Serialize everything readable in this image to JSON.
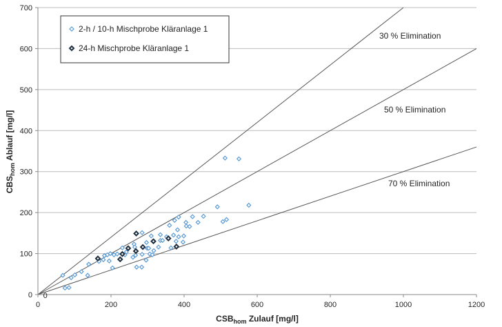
{
  "chart_data": {
    "type": "scatter",
    "title": "",
    "xlabel": {
      "main": "CSB",
      "sub": "hom",
      "rest": " Zulauf [mg/l]"
    },
    "ylabel": {
      "main": "CBS",
      "sub": "hom",
      "rest": " Ablauf [mg/l]"
    },
    "xlim": [
      0,
      1200
    ],
    "ylim": [
      0,
      700
    ],
    "xticks": [
      0,
      200,
      400,
      600,
      800,
      1000,
      1200
    ],
    "yticks": [
      0,
      100,
      200,
      300,
      400,
      500,
      600,
      700
    ],
    "grid": "horizontal",
    "legend_position": "top-left",
    "series": [
      {
        "name": "2-h / 10-h Mischprobe Kläranlage 1",
        "color": "#5b9bd5",
        "marker": "diamond-open",
        "points": [
          [
            68,
            47
          ],
          [
            74,
            16
          ],
          [
            85,
            17
          ],
          [
            91,
            41
          ],
          [
            101,
            48
          ],
          [
            119,
            56
          ],
          [
            136,
            47
          ],
          [
            139,
            74
          ],
          [
            167,
            81
          ],
          [
            179,
            85
          ],
          [
            182,
            95
          ],
          [
            190,
            97
          ],
          [
            195,
            82
          ],
          [
            198,
            100
          ],
          [
            204,
            65
          ],
          [
            208,
            97
          ],
          [
            217,
            99
          ],
          [
            231,
            114
          ],
          [
            238,
            97
          ],
          [
            242,
            104
          ],
          [
            260,
            91
          ],
          [
            263,
            123
          ],
          [
            265,
            116
          ],
          [
            270,
            67
          ],
          [
            267,
            96
          ],
          [
            284,
            67
          ],
          [
            285,
            151
          ],
          [
            285,
            98
          ],
          [
            296,
            84
          ],
          [
            297,
            127
          ],
          [
            299,
            113
          ],
          [
            303,
            113
          ],
          [
            306,
            99
          ],
          [
            310,
            143
          ],
          [
            313,
            97
          ],
          [
            317,
            107
          ],
          [
            330,
            116
          ],
          [
            335,
            146
          ],
          [
            335,
            132
          ],
          [
            341,
            132
          ],
          [
            352,
            141
          ],
          [
            360,
            169
          ],
          [
            364,
            114
          ],
          [
            371,
            145
          ],
          [
            374,
            181
          ],
          [
            378,
            130
          ],
          [
            382,
            158
          ],
          [
            385,
            141
          ],
          [
            385,
            189
          ],
          [
            397,
            128
          ],
          [
            399,
            143
          ],
          [
            405,
            176
          ],
          [
            406,
            167
          ],
          [
            415,
            166
          ],
          [
            423,
            190
          ],
          [
            438,
            176
          ],
          [
            453,
            191
          ],
          [
            512,
            333
          ],
          [
            550,
            331
          ],
          [
            491,
            214
          ],
          [
            577,
            218
          ],
          [
            506,
            178
          ],
          [
            516,
            183
          ]
        ]
      },
      {
        "name": "24-h Mischprobe Kläranlage 1",
        "color": "#1f2f3f",
        "marker": "diamond-bold",
        "points": [
          [
            164,
            88
          ],
          [
            269,
            149
          ],
          [
            231,
            99
          ],
          [
            225,
            86
          ],
          [
            247,
            113
          ],
          [
            268,
            106
          ],
          [
            287,
            116
          ],
          [
            316,
            130
          ],
          [
            357,
            137
          ],
          [
            379,
            117
          ]
        ]
      }
    ],
    "reference_lines": [
      {
        "label": "30 % Elimination",
        "slope": 0.7
      },
      {
        "label": "50 % Elimination",
        "slope": 0.5
      },
      {
        "label": "70 % Elimination",
        "slope": 0.3
      }
    ],
    "annotations": [
      {
        "text": "0",
        "x": 20,
        "y": 0
      }
    ]
  }
}
